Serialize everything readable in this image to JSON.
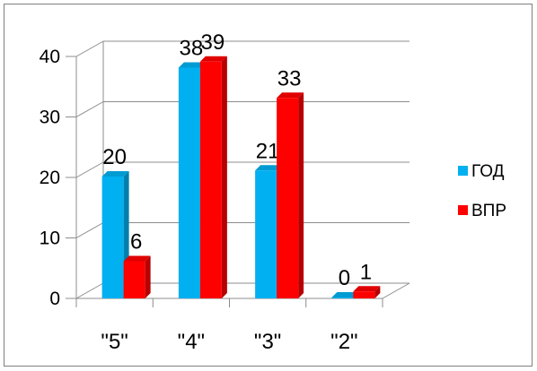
{
  "chart_data": {
    "type": "bar",
    "variant": "clustered-3d",
    "categories": [
      "\"5\"",
      "\"4\"",
      "\"3\"",
      "\"2\""
    ],
    "series": [
      {
        "name": "ГОД",
        "color": "#00b0f0",
        "values": [
          20,
          38,
          21,
          0
        ]
      },
      {
        "name": "ВПР",
        "color": "#ff0000",
        "values": [
          6,
          39,
          33,
          1
        ]
      }
    ],
    "yticks": [
      "0",
      "10",
      "20",
      "30",
      "40"
    ],
    "ylim": [
      0,
      40
    ],
    "grid": true,
    "legend": "right",
    "data_labels": true
  }
}
